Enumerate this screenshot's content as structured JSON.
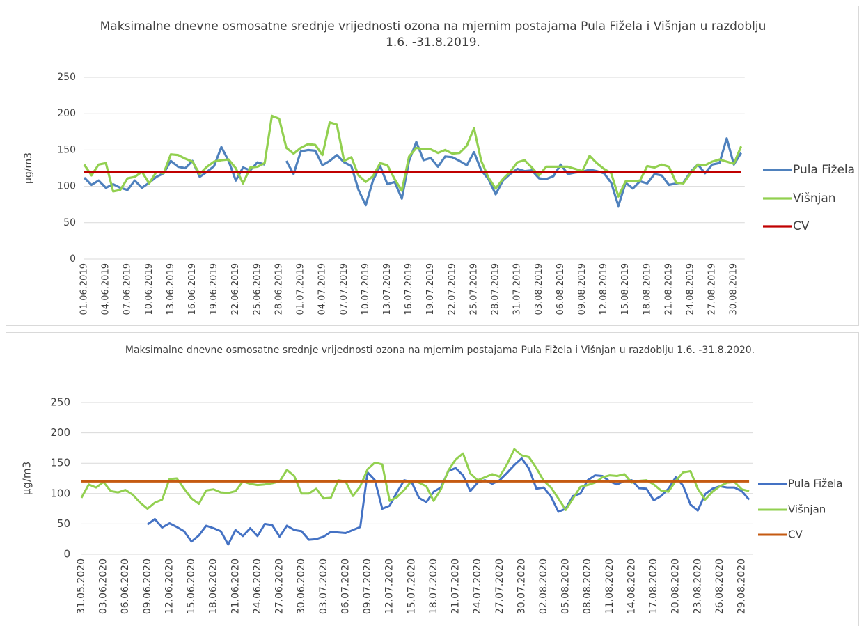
{
  "chart_data": [
    {
      "type": "line",
      "title": "Maksimalne dnevne osmosatne srednje vrijednosti ozona na mjernim postajama Pula Fižela i Višnjan u razdoblju 1.6. -31.8.2019.",
      "y_label": "µg/m3",
      "categories": [
        "01.06.2019",
        null,
        null,
        "04.06.2019",
        null,
        null,
        "07.06.2019",
        null,
        null,
        "10.06.2019",
        null,
        null,
        "13.06.2019",
        null,
        null,
        "16.06.2019",
        null,
        null,
        "19.06.2019",
        null,
        null,
        "22.06.2019",
        null,
        null,
        "25.06.2019",
        null,
        null,
        "28.06.2019",
        null,
        null,
        "01.07.2019",
        null,
        null,
        "04.07.2019",
        null,
        null,
        "07.07.2019",
        null,
        null,
        "10.07.2019",
        null,
        null,
        "13.07.2019",
        null,
        null,
        "16.07.2019",
        null,
        null,
        "19.07.2019",
        null,
        null,
        "22.07.2019",
        null,
        null,
        "25.07.2019",
        null,
        null,
        "28.07.2019",
        null,
        null,
        "31.07.2019",
        null,
        null,
        "03.08.2019",
        null,
        null,
        "06.08.2019",
        null,
        null,
        "09.08.2019",
        null,
        null,
        "12.08.2019",
        null,
        null,
        "15.08.2019",
        null,
        null,
        "18.08.2019",
        null,
        null,
        "21.08.2019",
        null,
        null,
        "24.08.2019",
        null,
        null,
        "27.08.2019",
        null,
        null,
        "30.08.2019",
        null
      ],
      "series": [
        {
          "name": "Pula Fižela",
          "color": "#4f81bd",
          "values": [
            112,
            102,
            108,
            98,
            103,
            98,
            95,
            108,
            98,
            105,
            113,
            118,
            135,
            127,
            125,
            135,
            113,
            120,
            128,
            154,
            135,
            108,
            126,
            122,
            133,
            130,
            null,
            null,
            135,
            117,
            148,
            150,
            149,
            129,
            135,
            143,
            133,
            128,
            95,
            74,
            108,
            128,
            103,
            106,
            83,
            135,
            161,
            136,
            139,
            127,
            141,
            140,
            135,
            129,
            147,
            122,
            110,
            89,
            108,
            117,
            124,
            121,
            122,
            111,
            110,
            114,
            130,
            117,
            119,
            120,
            123,
            121,
            118,
            105,
            73,
            105,
            97,
            107,
            104,
            117,
            115,
            102,
            104,
            105,
            120,
            130,
            118,
            130,
            132,
            166,
            130,
            146
          ]
        },
        {
          "name": "Višnjan",
          "color": "#92d050",
          "values": [
            130,
            115,
            130,
            132,
            93,
            95,
            111,
            113,
            120,
            104,
            120,
            118,
            144,
            143,
            138,
            134,
            117,
            127,
            134,
            136,
            137,
            125,
            104,
            126,
            127,
            132,
            197,
            193,
            153,
            145,
            153,
            158,
            157,
            143,
            188,
            185,
            135,
            140,
            115,
            106,
            114,
            132,
            129,
            110,
            94,
            141,
            153,
            151,
            151,
            146,
            150,
            145,
            146,
            156,
            180,
            135,
            112,
            97,
            110,
            120,
            133,
            136,
            126,
            115,
            127,
            127,
            127,
            127,
            124,
            121,
            142,
            132,
            124,
            118,
            86,
            107,
            107,
            108,
            128,
            126,
            130,
            127,
            105,
            104,
            118,
            130,
            129,
            134,
            137,
            134,
            131,
            155
          ]
        },
        {
          "name": "CV",
          "color": "#c00000",
          "values": [
            120,
            120,
            120,
            120,
            120,
            120,
            120,
            120,
            120,
            120,
            120,
            120,
            120,
            120,
            120,
            120,
            120,
            120,
            120,
            120,
            120,
            120,
            120,
            120,
            120,
            120,
            120,
            120,
            120,
            120,
            120,
            120,
            120,
            120,
            120,
            120,
            120,
            120,
            120,
            120,
            120,
            120,
            120,
            120,
            120,
            120,
            120,
            120,
            120,
            120,
            120,
            120,
            120,
            120,
            120,
            120,
            120,
            120,
            120,
            120,
            120,
            120,
            120,
            120,
            120,
            120,
            120,
            120,
            120,
            120,
            120,
            120,
            120,
            120,
            120,
            120,
            120,
            120,
            120,
            120,
            120,
            120,
            120,
            120,
            120,
            120,
            120,
            120,
            120,
            120,
            120,
            120
          ]
        }
      ],
      "ylim": [
        0,
        250
      ],
      "yticks": [
        0,
        50,
        100,
        150,
        200,
        250
      ],
      "grid": true,
      "legend": "right"
    },
    {
      "type": "line",
      "title": "Maksimalne dnevne osmosatne srednje vrijednosti ozona na mjernim postajama Pula Fižela i Višnjan u razdoblju 1.6. -31.8.2020.",
      "y_label": "µg/m3",
      "categories": [
        "31.05.2020",
        null,
        null,
        "03.06.2020",
        null,
        null,
        "06.06.2020",
        null,
        null,
        "09.06.2020",
        null,
        null,
        "12.06.2020",
        null,
        null,
        "15.06.2020",
        null,
        null,
        "18.06.2020",
        null,
        null,
        "21.06.2020",
        null,
        null,
        "24.06.2020",
        null,
        null,
        "27.06.2020",
        null,
        null,
        "30.06.2020",
        null,
        null,
        "03.07.2020",
        null,
        null,
        "06.07.2020",
        null,
        null,
        "09.07.2020",
        null,
        null,
        "12.07.2020",
        null,
        null,
        "15.07.2020",
        null,
        null,
        "18.07.2020",
        null,
        null,
        "21.07.2020",
        null,
        null,
        "24.07.2020",
        null,
        null,
        "27.07.2020",
        null,
        null,
        "30.07.2020",
        null,
        null,
        "02.08.2020",
        null,
        null,
        "05.08.2020",
        null,
        null,
        "08.08.2020",
        null,
        null,
        "11.08.2020",
        null,
        null,
        "14.08.2020",
        null,
        null,
        "17.08.2020",
        null,
        null,
        "20.08.2020",
        null,
        null,
        "23.08.2020",
        null,
        null,
        "26.08.2020",
        null,
        null,
        "29.08.2020",
        null
      ],
      "series": [
        {
          "name": "Pula Fižela",
          "color": "#4472c4",
          "values": [
            null,
            null,
            null,
            null,
            null,
            null,
            null,
            null,
            null,
            49,
            58,
            44,
            51,
            45,
            38,
            21,
            31,
            47,
            43,
            38,
            16,
            40,
            30,
            43,
            30,
            50,
            48,
            29,
            47,
            40,
            38,
            24,
            25,
            29,
            37,
            36,
            35,
            40,
            45,
            135,
            122,
            75,
            80,
            102,
            122,
            119,
            93,
            86,
            103,
            110,
            137,
            142,
            130,
            104,
            118,
            122,
            116,
            122,
            134,
            147,
            158,
            141,
            108,
            110,
            95,
            70,
            75,
            96,
            100,
            122,
            130,
            129,
            120,
            115,
            121,
            122,
            109,
            108,
            89,
            96,
            108,
            127,
            113,
            82,
            72,
            99,
            108,
            112,
            110,
            110,
            104,
            90
          ]
        },
        {
          "name": "Višnjan",
          "color": "#92d050",
          "values": [
            93,
            115,
            110,
            119,
            104,
            102,
            106,
            98,
            85,
            75,
            85,
            90,
            124,
            125,
            108,
            92,
            83,
            105,
            107,
            102,
            101,
            104,
            120,
            116,
            114,
            115,
            117,
            120,
            139,
            129,
            100,
            100,
            108,
            92,
            93,
            122,
            120,
            96,
            112,
            140,
            151,
            148,
            88,
            94,
            106,
            121,
            118,
            112,
            88,
            107,
            138,
            156,
            166,
            133,
            122,
            127,
            132,
            128,
            148,
            173,
            163,
            160,
            142,
            121,
            110,
            92,
            73,
            92,
            111,
            114,
            118,
            127,
            130,
            129,
            132,
            118,
            121,
            122,
            115,
            105,
            103,
            121,
            135,
            137,
            108,
            90,
            103,
            112,
            118,
            119,
            107,
            104
          ]
        },
        {
          "name": "CV",
          "color": "#c55a11",
          "values": [
            120,
            120,
            120,
            120,
            120,
            120,
            120,
            120,
            120,
            120,
            120,
            120,
            120,
            120,
            120,
            120,
            120,
            120,
            120,
            120,
            120,
            120,
            120,
            120,
            120,
            120,
            120,
            120,
            120,
            120,
            120,
            120,
            120,
            120,
            120,
            120,
            120,
            120,
            120,
            120,
            120,
            120,
            120,
            120,
            120,
            120,
            120,
            120,
            120,
            120,
            120,
            120,
            120,
            120,
            120,
            120,
            120,
            120,
            120,
            120,
            120,
            120,
            120,
            120,
            120,
            120,
            120,
            120,
            120,
            120,
            120,
            120,
            120,
            120,
            120,
            120,
            120,
            120,
            120,
            120,
            120,
            120,
            120,
            120,
            120,
            120,
            120,
            120,
            120,
            120,
            120,
            120
          ]
        }
      ],
      "ylim": [
        0,
        250
      ],
      "yticks": [
        0,
        50,
        100,
        150,
        200,
        250
      ],
      "grid": true,
      "legend": "right"
    }
  ]
}
